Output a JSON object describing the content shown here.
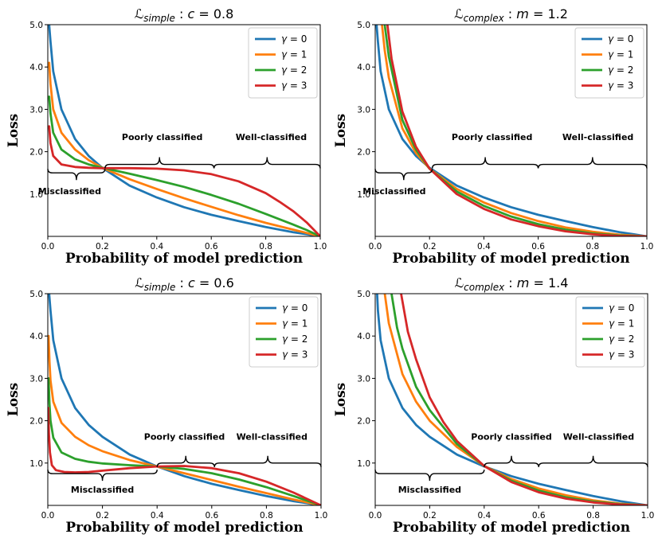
{
  "chart_data": [
    {
      "type": "line",
      "title_symbol": "ℒ",
      "title_subscript": "simple",
      "title_param": "c",
      "title_value": "0.8",
      "xlabel": "Probability of model prediction",
      "ylabel": "Loss",
      "xlim": [
        0,
        1
      ],
      "ylim": [
        0,
        5
      ],
      "xticks": [
        "0.0",
        "0.2",
        "0.4",
        "0.6",
        "0.8",
        "1.0"
      ],
      "yticks": [
        "1.0",
        "2.0",
        "3.0",
        "4.0",
        "5.0"
      ],
      "legend_position": "top-right",
      "series": [
        {
          "name": "γ = 0",
          "gamma": "0",
          "color": "#1f77b4",
          "x": [
            0.005,
            0.01,
            0.02,
            0.05,
            0.1,
            0.15,
            0.2,
            0.3,
            0.4,
            0.5,
            0.6,
            0.7,
            0.8,
            0.9,
            0.95,
            1.0
          ],
          "y": [
            5.0,
            4.6,
            3.9,
            3.0,
            2.3,
            1.9,
            1.62,
            1.2,
            0.92,
            0.69,
            0.51,
            0.36,
            0.22,
            0.1,
            0.05,
            0.0
          ]
        },
        {
          "name": "γ = 1",
          "gamma": "1",
          "color": "#ff7f0e",
          "x": [
            0.005,
            0.01,
            0.02,
            0.05,
            0.1,
            0.15,
            0.2,
            0.3,
            0.4,
            0.5,
            0.6,
            0.7,
            0.8,
            0.9,
            0.95,
            1.0
          ],
          "y": [
            4.1,
            3.6,
            3.0,
            2.45,
            2.05,
            1.8,
            1.62,
            1.35,
            1.12,
            0.9,
            0.7,
            0.5,
            0.32,
            0.16,
            0.08,
            0.0
          ]
        },
        {
          "name": "γ = 2",
          "gamma": "2",
          "color": "#2ca02c",
          "x": [
            0.005,
            0.01,
            0.02,
            0.05,
            0.1,
            0.15,
            0.2,
            0.3,
            0.4,
            0.5,
            0.6,
            0.7,
            0.8,
            0.9,
            0.95,
            1.0
          ],
          "y": [
            3.3,
            2.9,
            2.45,
            2.05,
            1.82,
            1.7,
            1.62,
            1.48,
            1.33,
            1.17,
            0.98,
            0.77,
            0.53,
            0.28,
            0.15,
            0.0
          ]
        },
        {
          "name": "γ = 3",
          "gamma": "3",
          "color": "#d62728",
          "x": [
            0.005,
            0.01,
            0.02,
            0.05,
            0.1,
            0.15,
            0.2,
            0.3,
            0.4,
            0.5,
            0.6,
            0.7,
            0.8,
            0.85,
            0.9,
            0.95,
            1.0
          ],
          "y": [
            2.6,
            2.2,
            1.9,
            1.7,
            1.64,
            1.62,
            1.61,
            1.61,
            1.6,
            1.56,
            1.47,
            1.3,
            1.02,
            0.82,
            0.6,
            0.33,
            0.0
          ]
        }
      ],
      "annotations": {
        "misclassified": {
          "text": "Misclassified",
          "brace_x": [
            0.0,
            0.21
          ],
          "brace_y": 1.5,
          "text_x": 0.08,
          "text_y": 1.0
        },
        "poorly": {
          "text": "Poorly classified",
          "brace_x": [
            0.21,
            0.61
          ],
          "brace_y": 1.7,
          "text_x": 0.42,
          "text_y": 2.27
        },
        "well": {
          "text": "Well-classified",
          "brace_x": [
            0.61,
            1.0
          ],
          "brace_y": 1.7,
          "text_x": 0.82,
          "text_y": 2.27
        }
      }
    },
    {
      "type": "line",
      "title_symbol": "ℒ",
      "title_subscript": "complex",
      "title_param": "m",
      "title_value": "1.2",
      "xlabel": "Probability of model prediction",
      "ylabel": "Loss",
      "xlim": [
        0,
        1
      ],
      "ylim": [
        0,
        5
      ],
      "xticks": [
        "0.0",
        "0.2",
        "0.4",
        "0.6",
        "0.8",
        "1.0"
      ],
      "yticks": [
        "1.0",
        "2.0",
        "3.0",
        "4.0",
        "5.0"
      ],
      "legend_position": "top-right",
      "series": [
        {
          "name": "γ = 0",
          "gamma": "0",
          "color": "#1f77b4",
          "x": [
            0.005,
            0.01,
            0.02,
            0.05,
            0.1,
            0.15,
            0.2,
            0.3,
            0.4,
            0.5,
            0.6,
            0.7,
            0.8,
            0.9,
            0.95,
            1.0
          ],
          "y": [
            5.0,
            4.6,
            3.9,
            3.0,
            2.3,
            1.9,
            1.62,
            1.2,
            0.92,
            0.69,
            0.51,
            0.36,
            0.22,
            0.1,
            0.05,
            0.0
          ]
        },
        {
          "name": "γ = 1",
          "gamma": "1",
          "color": "#ff7f0e",
          "x": [
            0.025,
            0.035,
            0.05,
            0.1,
            0.15,
            0.2,
            0.3,
            0.4,
            0.5,
            0.6,
            0.7,
            0.8,
            0.9,
            1.0
          ],
          "y": [
            5.0,
            4.4,
            3.75,
            2.55,
            1.97,
            1.6,
            1.12,
            0.8,
            0.55,
            0.36,
            0.21,
            0.11,
            0.04,
            0.0
          ]
        },
        {
          "name": "γ = 2",
          "gamma": "2",
          "color": "#2ca02c",
          "x": [
            0.035,
            0.05,
            0.1,
            0.15,
            0.2,
            0.3,
            0.4,
            0.5,
            0.6,
            0.7,
            0.8,
            0.9,
            1.0
          ],
          "y": [
            5.0,
            4.25,
            2.75,
            2.05,
            1.6,
            1.06,
            0.72,
            0.47,
            0.29,
            0.16,
            0.07,
            0.02,
            0.0
          ]
        },
        {
          "name": "γ = 3",
          "gamma": "3",
          "color": "#d62728",
          "x": [
            0.045,
            0.06,
            0.1,
            0.15,
            0.2,
            0.3,
            0.4,
            0.5,
            0.6,
            0.7,
            0.8,
            0.9,
            1.0
          ],
          "y": [
            5.0,
            4.2,
            2.95,
            2.12,
            1.6,
            1.0,
            0.65,
            0.4,
            0.24,
            0.12,
            0.05,
            0.01,
            0.0
          ]
        }
      ],
      "annotations": {
        "misclassified": {
          "text": "Misclassified",
          "brace_x": [
            0.0,
            0.21
          ],
          "brace_y": 1.5,
          "text_x": 0.07,
          "text_y": 1.0
        },
        "poorly": {
          "text": "Poorly classified",
          "brace_x": [
            0.21,
            0.6
          ],
          "brace_y": 1.7,
          "text_x": 0.43,
          "text_y": 2.27
        },
        "well": {
          "text": "Well-classified",
          "brace_x": [
            0.6,
            1.0
          ],
          "brace_y": 1.7,
          "text_x": 0.82,
          "text_y": 2.27
        }
      }
    },
    {
      "type": "line",
      "title_symbol": "ℒ",
      "title_subscript": "simple",
      "title_param": "c",
      "title_value": "0.6",
      "xlabel": "Probability of model prediction",
      "ylabel": "Loss",
      "xlim": [
        0,
        1
      ],
      "ylim": [
        0,
        5
      ],
      "xticks": [
        "0.0",
        "0.2",
        "0.4",
        "0.6",
        "0.8",
        "1.0"
      ],
      "yticks": [
        "1.0",
        "2.0",
        "3.0",
        "4.0",
        "5.0"
      ],
      "legend_position": "top-right",
      "series": [
        {
          "name": "γ = 0",
          "gamma": "0",
          "color": "#1f77b4",
          "x": [
            0.005,
            0.01,
            0.02,
            0.05,
            0.1,
            0.15,
            0.2,
            0.3,
            0.4,
            0.5,
            0.6,
            0.7,
            0.8,
            0.9,
            0.95,
            1.0
          ],
          "y": [
            5.0,
            4.6,
            3.9,
            3.0,
            2.3,
            1.9,
            1.62,
            1.2,
            0.92,
            0.69,
            0.51,
            0.36,
            0.22,
            0.1,
            0.05,
            0.0
          ]
        },
        {
          "name": "γ = 1",
          "gamma": "1",
          "color": "#ff7f0e",
          "x": [
            0.003,
            0.006,
            0.01,
            0.02,
            0.05,
            0.1,
            0.15,
            0.2,
            0.3,
            0.4,
            0.5,
            0.6,
            0.7,
            0.8,
            0.9,
            1.0
          ],
          "y": [
            4.0,
            3.4,
            2.95,
            2.45,
            1.95,
            1.62,
            1.42,
            1.28,
            1.07,
            0.92,
            0.76,
            0.6,
            0.44,
            0.29,
            0.14,
            0.0
          ]
        },
        {
          "name": "γ = 2",
          "gamma": "2",
          "color": "#2ca02c",
          "x": [
            0.003,
            0.006,
            0.01,
            0.02,
            0.05,
            0.1,
            0.15,
            0.2,
            0.3,
            0.4,
            0.5,
            0.6,
            0.7,
            0.8,
            0.9,
            1.0
          ],
          "y": [
            3.0,
            2.4,
            2.0,
            1.6,
            1.25,
            1.1,
            1.03,
            0.99,
            0.95,
            0.92,
            0.86,
            0.76,
            0.61,
            0.43,
            0.22,
            0.0
          ]
        },
        {
          "name": "γ = 3",
          "gamma": "3",
          "color": "#d62728",
          "x": [
            0.002,
            0.004,
            0.008,
            0.015,
            0.03,
            0.06,
            0.1,
            0.15,
            0.2,
            0.25,
            0.3,
            0.4,
            0.5,
            0.6,
            0.7,
            0.8,
            0.9,
            1.0
          ],
          "y": [
            2.3,
            1.7,
            1.25,
            0.95,
            0.83,
            0.79,
            0.78,
            0.79,
            0.82,
            0.85,
            0.88,
            0.92,
            0.93,
            0.88,
            0.76,
            0.56,
            0.3,
            0.0
          ]
        }
      ],
      "annotations": {
        "misclassified": {
          "text": "Misclassified",
          "brace_x": [
            0.0,
            0.4
          ],
          "brace_y": 0.75,
          "text_x": 0.2,
          "text_y": 0.3
        },
        "poorly": {
          "text": "Poorly classified",
          "brace_x": [
            0.4,
            0.61
          ],
          "brace_y": 1.0,
          "text_x": 0.5,
          "text_y": 1.55
        },
        "well": {
          "text": "Well-classified",
          "brace_x": [
            0.61,
            1.0
          ],
          "brace_y": 1.0,
          "text_x": 0.82,
          "text_y": 1.55
        }
      }
    },
    {
      "type": "line",
      "title_symbol": "ℒ",
      "title_subscript": "complex",
      "title_param": "m",
      "title_value": "1.4",
      "xlabel": "Probability of model prediction",
      "ylabel": "Loss",
      "xlim": [
        0,
        1
      ],
      "ylim": [
        0,
        5
      ],
      "xticks": [
        "0.0",
        "0.2",
        "0.4",
        "0.6",
        "0.8",
        "1.0"
      ],
      "yticks": [
        "1.0",
        "2.0",
        "3.0",
        "4.0",
        "5.0"
      ],
      "legend_position": "top-right",
      "series": [
        {
          "name": "γ = 0",
          "gamma": "0",
          "color": "#1f77b4",
          "x": [
            0.007,
            0.01,
            0.02,
            0.05,
            0.1,
            0.15,
            0.2,
            0.3,
            0.4,
            0.5,
            0.6,
            0.7,
            0.8,
            0.9,
            1.0
          ],
          "y": [
            5.0,
            4.6,
            3.9,
            3.0,
            2.3,
            1.9,
            1.62,
            1.2,
            0.92,
            0.69,
            0.51,
            0.36,
            0.22,
            0.1,
            0.0
          ]
        },
        {
          "name": "γ = 1",
          "gamma": "1",
          "color": "#ff7f0e",
          "x": [
            0.035,
            0.05,
            0.1,
            0.15,
            0.2,
            0.3,
            0.4,
            0.5,
            0.6,
            0.7,
            0.8,
            0.9,
            1.0
          ],
          "y": [
            5.0,
            4.3,
            3.1,
            2.45,
            2.0,
            1.38,
            0.93,
            0.62,
            0.4,
            0.24,
            0.12,
            0.04,
            0.0
          ]
        },
        {
          "name": "γ = 2",
          "gamma": "2",
          "color": "#2ca02c",
          "x": [
            0.06,
            0.08,
            0.1,
            0.15,
            0.2,
            0.3,
            0.4,
            0.5,
            0.6,
            0.7,
            0.8,
            0.9,
            1.0
          ],
          "y": [
            5.0,
            4.2,
            3.7,
            2.8,
            2.25,
            1.45,
            0.93,
            0.58,
            0.35,
            0.19,
            0.09,
            0.03,
            0.0
          ]
        },
        {
          "name": "γ = 3",
          "gamma": "3",
          "color": "#d62728",
          "x": [
            0.095,
            0.12,
            0.15,
            0.2,
            0.25,
            0.3,
            0.4,
            0.5,
            0.6,
            0.7,
            0.8,
            0.9,
            1.0
          ],
          "y": [
            5.0,
            4.1,
            3.45,
            2.55,
            1.97,
            1.52,
            0.93,
            0.55,
            0.31,
            0.16,
            0.07,
            0.02,
            0.0
          ]
        }
      ],
      "annotations": {
        "misclassified": {
          "text": "Misclassified",
          "brace_x": [
            0.0,
            0.4
          ],
          "brace_y": 0.75,
          "text_x": 0.2,
          "text_y": 0.3
        },
        "poorly": {
          "text": "Poorly classified",
          "brace_x": [
            0.4,
            0.6
          ],
          "brace_y": 1.0,
          "text_x": 0.5,
          "text_y": 1.55
        },
        "well": {
          "text": "Well-classified",
          "brace_x": [
            0.6,
            1.0
          ],
          "brace_y": 1.0,
          "text_x": 0.82,
          "text_y": 1.55
        }
      }
    }
  ]
}
